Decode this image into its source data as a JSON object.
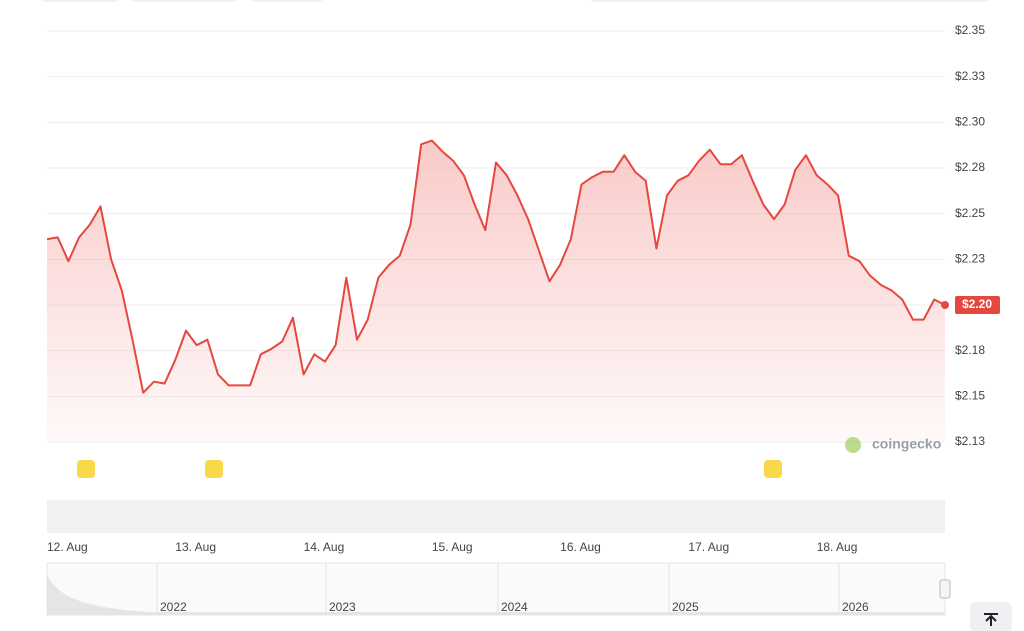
{
  "chart_data": {
    "type": "line",
    "color": "#e5483f",
    "categories": [
      "12. Aug",
      null,
      null,
      null,
      null,
      null,
      null,
      null,
      null,
      null,
      null,
      null,
      "13. Aug",
      null,
      null,
      null,
      null,
      null,
      null,
      null,
      null,
      null,
      null,
      null,
      "14. Aug",
      null,
      null,
      null,
      null,
      null,
      null,
      null,
      null,
      null,
      null,
      null,
      "15. Aug",
      null,
      null,
      null,
      null,
      null,
      null,
      null,
      null,
      null,
      null,
      null,
      "16. Aug",
      null,
      null,
      null,
      null,
      null,
      null,
      null,
      null,
      null,
      null,
      null,
      "17. Aug",
      null,
      null,
      null,
      null,
      null,
      null,
      null,
      null,
      null,
      null,
      null,
      "18. Aug",
      null,
      null,
      null,
      null,
      null,
      null,
      null,
      null,
      null,
      null,
      null,
      null
    ],
    "values": [
      2.236,
      2.237,
      2.224,
      2.237,
      2.244,
      2.254,
      2.225,
      2.208,
      2.181,
      2.152,
      2.158,
      2.157,
      2.17,
      2.186,
      2.178,
      2.181,
      2.162,
      2.156,
      2.156,
      2.156,
      2.173,
      2.176,
      2.18,
      2.193,
      2.162,
      2.173,
      2.169,
      2.178,
      2.215,
      2.181,
      2.192,
      2.215,
      2.222,
      2.227,
      2.244,
      2.288,
      2.29,
      2.284,
      2.279,
      2.271,
      2.255,
      2.241,
      2.278,
      2.271,
      2.26,
      2.247,
      2.23,
      2.213,
      2.222,
      2.236,
      2.266,
      2.27,
      2.273,
      2.273,
      2.282,
      2.273,
      2.268,
      2.231,
      2.26,
      2.268,
      2.271,
      2.279,
      2.285,
      2.277,
      2.277,
      2.282,
      2.268,
      2.255,
      2.247,
      2.255,
      2.274,
      2.282,
      2.271,
      2.266,
      2.26,
      2.227,
      2.224,
      2.216,
      2.211,
      2.208,
      2.203,
      2.192,
      2.192,
      2.203,
      2.2
    ],
    "last_price_label": "$2.20",
    "ylim": [
      2.125,
      2.35
    ],
    "yticks": [
      {
        "value": 2.125,
        "label": "$2.13"
      },
      {
        "value": 2.15,
        "label": "$2.15"
      },
      {
        "value": 2.175,
        "label": "$2.18"
      },
      {
        "value": 2.2,
        "label": "$2.20"
      },
      {
        "value": 2.225,
        "label": "$2.23"
      },
      {
        "value": 2.25,
        "label": "$2.25"
      },
      {
        "value": 2.275,
        "label": "$2.28"
      },
      {
        "value": 2.3,
        "label": "$2.30"
      },
      {
        "value": 2.325,
        "label": "$2.33"
      },
      {
        "value": 2.35,
        "label": "$2.35"
      }
    ],
    "grid": true
  },
  "watermark": "coingecko",
  "navigator": {
    "labels": [
      "2022",
      "2023",
      "2024",
      "2025",
      "2026"
    ]
  }
}
